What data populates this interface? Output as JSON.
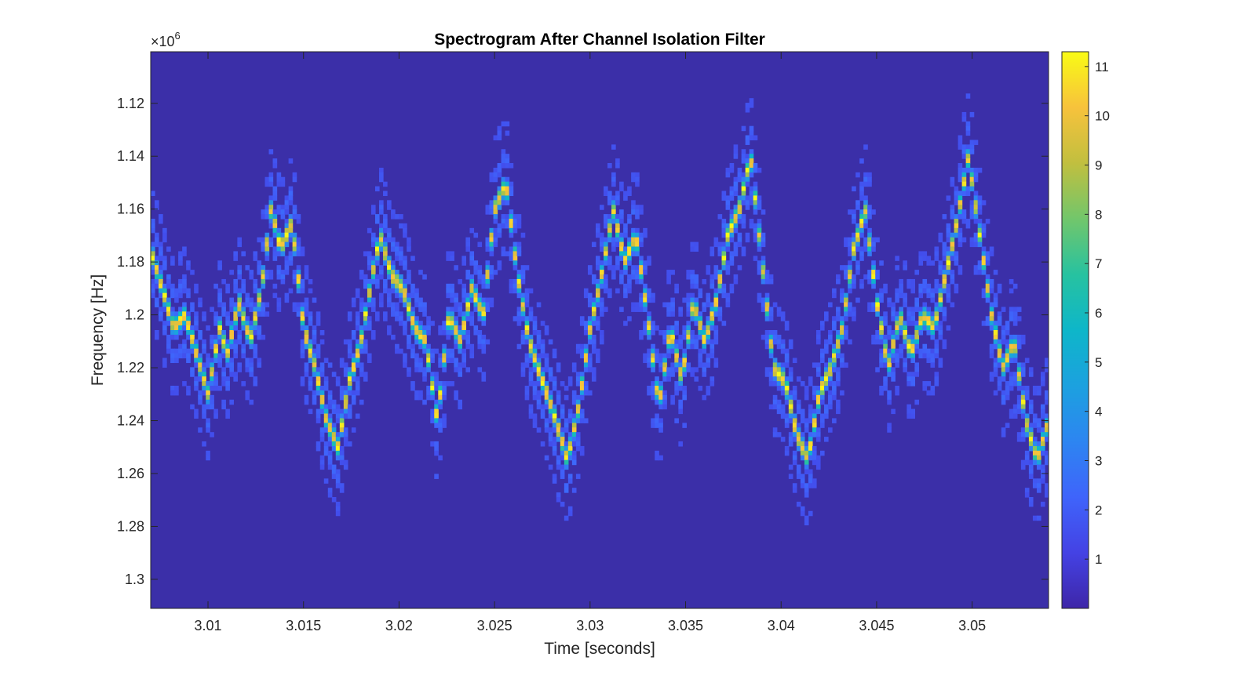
{
  "chart_data": {
    "type": "heatmap",
    "title": "Spectrogram After Channel Isolation Filter",
    "xlabel": "Time [seconds]",
    "ylabel": "Frequency [Hz]",
    "y_multiplier": {
      "base": "×10",
      "exponent": "6"
    },
    "xlim": [
      3.007,
      3.054
    ],
    "ylim": [
      1.1005,
      1.311
    ],
    "y_reversed": true,
    "x_ticks": [
      3.01,
      3.015,
      3.02,
      3.025,
      3.03,
      3.035,
      3.04,
      3.045,
      3.05
    ],
    "x_tick_labels": [
      "3.01",
      "3.015",
      "3.02",
      "3.025",
      "3.03",
      "3.035",
      "3.04",
      "3.045",
      "3.05"
    ],
    "y_ticks": [
      1.12,
      1.14,
      1.16,
      1.18,
      1.2,
      1.22,
      1.24,
      1.26,
      1.28,
      1.3
    ],
    "y_tick_labels": [
      "1.12",
      "1.14",
      "1.16",
      "1.18",
      "1.2",
      "1.22",
      "1.24",
      "1.26",
      "1.28",
      "1.3"
    ],
    "colormap": "parula",
    "colorbar": {
      "range": [
        0,
        11.3
      ],
      "ticks": [
        1,
        2,
        3,
        4,
        5,
        6,
        7,
        8,
        9,
        10,
        11
      ],
      "tick_labels": [
        "1",
        "2",
        "3",
        "4",
        "5",
        "6",
        "7",
        "8",
        "9",
        "10",
        "11"
      ],
      "position": "right"
    },
    "background_level": 0.8,
    "ridge": {
      "time_s": [
        3.007,
        3.0076,
        3.0082,
        3.0088,
        3.0094,
        3.01,
        3.0106,
        3.011,
        3.0116,
        3.0122,
        3.0128,
        3.0133,
        3.0138,
        3.0144,
        3.015,
        3.0156,
        3.0162,
        3.0168,
        3.0174,
        3.018,
        3.0186,
        3.019,
        3.0196,
        3.0202,
        3.0208,
        3.0214,
        3.022,
        3.0226,
        3.0232,
        3.0238,
        3.0244,
        3.025,
        3.0256,
        3.0262,
        3.0268,
        3.0275,
        3.0282,
        3.0288,
        3.0294,
        3.03,
        3.0306,
        3.0312,
        3.0318,
        3.0324,
        3.033,
        3.0336,
        3.0342,
        3.0348,
        3.0354,
        3.036,
        3.0366,
        3.0372,
        3.0378,
        3.0384,
        3.039,
        3.0396,
        3.0402,
        3.0408,
        3.0414,
        3.042,
        3.0426,
        3.0432,
        3.0438,
        3.0444,
        3.045,
        3.0456,
        3.0462,
        3.0468,
        3.0474,
        3.048,
        3.0486,
        3.0492,
        3.0498,
        3.0504,
        3.051,
        3.0516,
        3.0522,
        3.0528,
        3.0534,
        3.054
      ],
      "freq_MHz": [
        1.176,
        1.19,
        1.205,
        1.2,
        1.215,
        1.23,
        1.205,
        1.215,
        1.195,
        1.21,
        1.19,
        1.16,
        1.175,
        1.165,
        1.205,
        1.22,
        1.24,
        1.25,
        1.225,
        1.21,
        1.185,
        1.17,
        1.185,
        1.19,
        1.205,
        1.21,
        1.24,
        1.2,
        1.21,
        1.19,
        1.2,
        1.16,
        1.15,
        1.185,
        1.21,
        1.225,
        1.24,
        1.255,
        1.235,
        1.205,
        1.185,
        1.16,
        1.18,
        1.17,
        1.2,
        1.235,
        1.205,
        1.225,
        1.195,
        1.21,
        1.195,
        1.17,
        1.16,
        1.14,
        1.18,
        1.22,
        1.225,
        1.245,
        1.255,
        1.23,
        1.22,
        1.205,
        1.175,
        1.16,
        1.195,
        1.22,
        1.2,
        1.215,
        1.2,
        1.205,
        1.185,
        1.165,
        1.14,
        1.17,
        1.2,
        1.22,
        1.21,
        1.24,
        1.255,
        1.24
      ]
    }
  }
}
